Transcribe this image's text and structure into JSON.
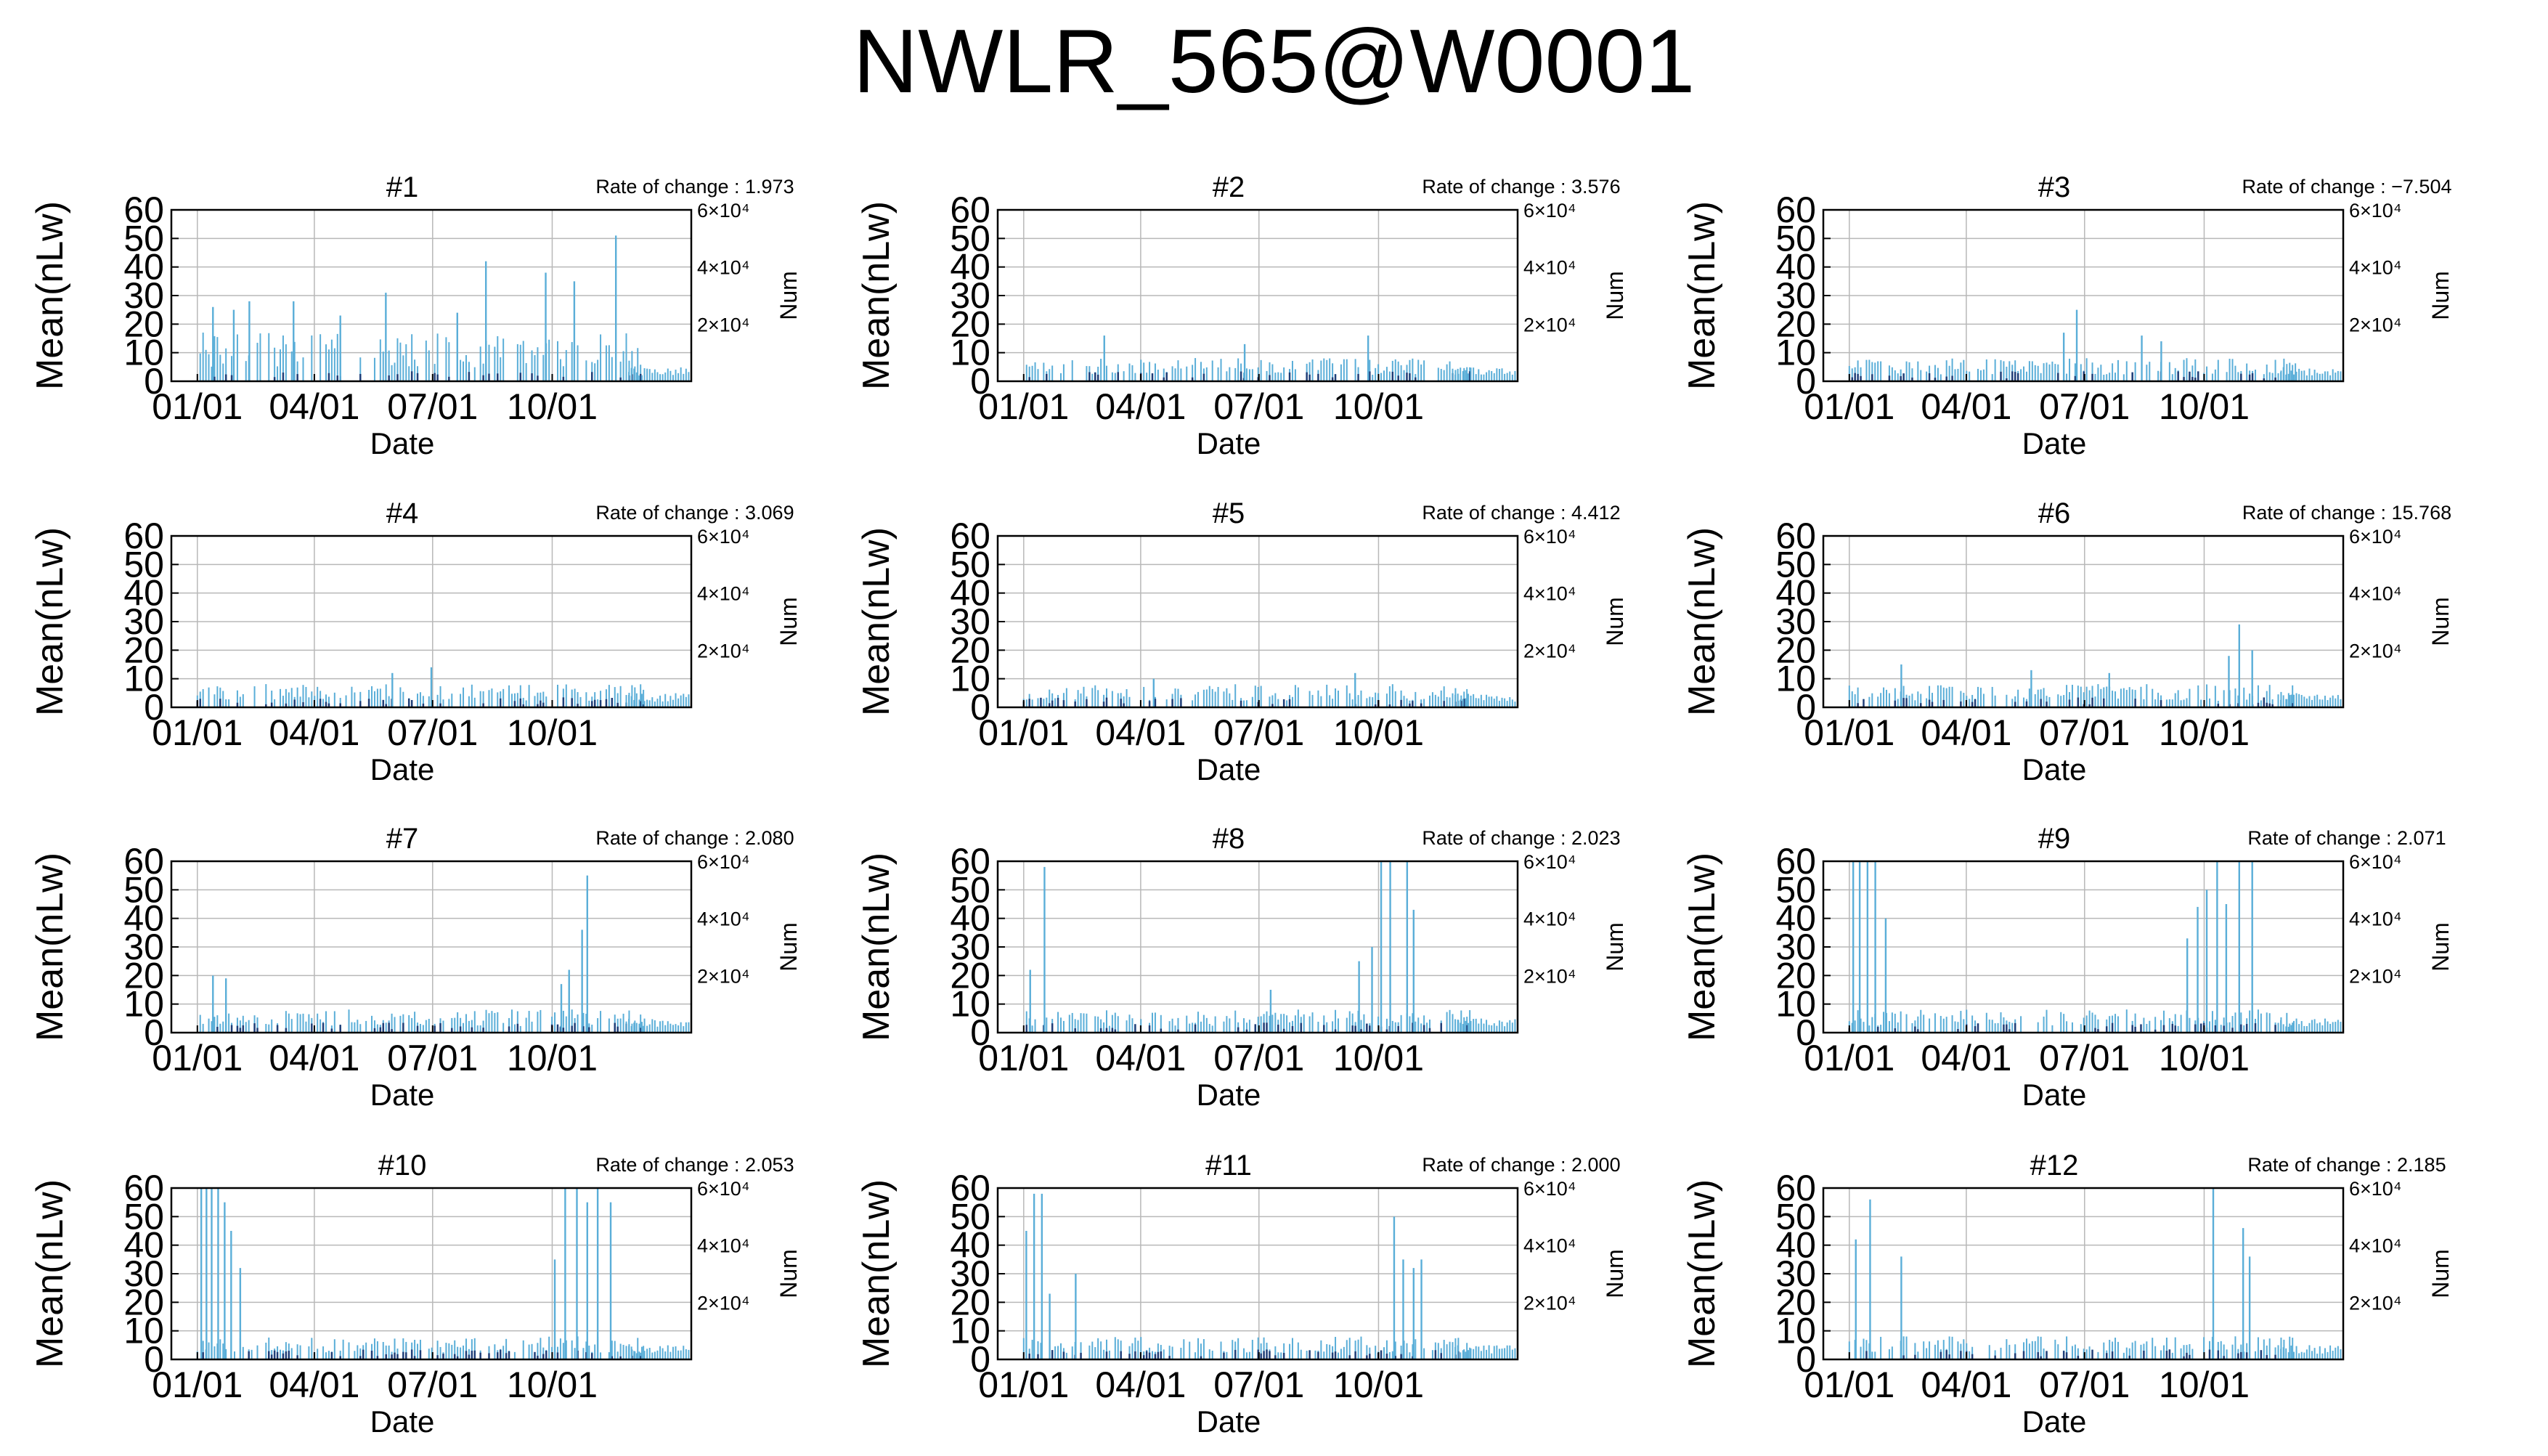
{
  "title": "NWLR_565@W0001",
  "colors": {
    "bar": "#5aaed8",
    "num_bar": "#1f3e78",
    "grid": "#b8b8b8",
    "axis": "#000000"
  },
  "chart_data": [
    {
      "type": "bar",
      "title": "#1",
      "rate_label": "Rate of change : 1.973",
      "xlabel": "Date",
      "ylabel": "Mean(nLw)",
      "y2label": "Num",
      "xticks": [
        "01/01",
        "04/01",
        "07/01",
        "10/01"
      ],
      "yticks": [
        0,
        10,
        20,
        30,
        40,
        50,
        60
      ],
      "ylim": [
        0,
        60
      ],
      "y2ticks": [
        "2×10⁴",
        "4×10⁴",
        "6×10⁴"
      ],
      "grid": true,
      "spikes": [
        {
          "day": 12,
          "value": 26
        },
        {
          "day": 28,
          "value": 25
        },
        {
          "day": 40,
          "value": 28
        },
        {
          "day": 74,
          "value": 28
        },
        {
          "day": 110,
          "value": 23
        },
        {
          "day": 145,
          "value": 31
        },
        {
          "day": 200,
          "value": 24
        },
        {
          "day": 222,
          "value": 42
        },
        {
          "day": 268,
          "value": 38
        },
        {
          "day": 290,
          "value": 35
        },
        {
          "day": 322,
          "value": 51
        }
      ]
    },
    {
      "type": "bar",
      "title": "#2",
      "rate_label": "Rate of change : 3.576",
      "xlabel": "Date",
      "ylabel": "Mean(nLw)",
      "y2label": "Num",
      "xticks": [
        "01/01",
        "04/01",
        "07/01",
        "10/01"
      ],
      "yticks": [
        0,
        10,
        20,
        30,
        40,
        50,
        60
      ],
      "ylim": [
        0,
        60
      ],
      "y2ticks": [
        "2×10⁴",
        "4×10⁴",
        "6×10⁴"
      ],
      "grid": true,
      "spikes": [
        {
          "day": 62,
          "value": 16
        },
        {
          "day": 170,
          "value": 13
        },
        {
          "day": 265,
          "value": 16
        }
      ]
    },
    {
      "type": "bar",
      "title": "#3",
      "rate_label": "Rate of change : −7.504",
      "xlabel": "Date",
      "ylabel": "Mean(nLw)",
      "y2label": "Num",
      "xticks": [
        "01/01",
        "04/01",
        "07/01",
        "10/01"
      ],
      "yticks": [
        0,
        10,
        20,
        30,
        40,
        50,
        60
      ],
      "ylim": [
        0,
        60
      ],
      "y2ticks": [
        "2×10⁴",
        "4×10⁴",
        "6×10⁴"
      ],
      "grid": true,
      "spikes": [
        {
          "day": 175,
          "value": 25
        },
        {
          "day": 165,
          "value": 17
        },
        {
          "day": 225,
          "value": 16
        },
        {
          "day": 240,
          "value": 14
        }
      ]
    },
    {
      "type": "bar",
      "title": "#4",
      "rate_label": "Rate of change : 3.069",
      "xlabel": "Date",
      "ylabel": "Mean(nLw)",
      "y2label": "Num",
      "xticks": [
        "01/01",
        "04/01",
        "07/01",
        "10/01"
      ],
      "yticks": [
        0,
        10,
        20,
        30,
        40,
        50,
        60
      ],
      "ylim": [
        0,
        60
      ],
      "y2ticks": [
        "2×10⁴",
        "4×10⁴",
        "6×10⁴"
      ],
      "grid": true,
      "spikes": [
        {
          "day": 180,
          "value": 14
        },
        {
          "day": 150,
          "value": 12
        }
      ]
    },
    {
      "type": "bar",
      "title": "#5",
      "rate_label": "Rate of change : 4.412",
      "xlabel": "Date",
      "ylabel": "Mean(nLw)",
      "y2label": "Num",
      "xticks": [
        "01/01",
        "04/01",
        "07/01",
        "10/01"
      ],
      "yticks": [
        0,
        10,
        20,
        30,
        40,
        50,
        60
      ],
      "ylim": [
        0,
        60
      ],
      "y2ticks": [
        "2×10⁴",
        "4×10⁴",
        "6×10⁴"
      ],
      "grid": true,
      "spikes": [
        {
          "day": 255,
          "value": 12
        },
        {
          "day": 100,
          "value": 10
        }
      ]
    },
    {
      "type": "bar",
      "title": "#6",
      "rate_label": "Rate of change : 15.768",
      "xlabel": "Date",
      "ylabel": "Mean(nLw)",
      "y2label": "Num",
      "xticks": [
        "01/01",
        "04/01",
        "07/01",
        "10/01"
      ],
      "yticks": [
        0,
        10,
        20,
        30,
        40,
        50,
        60
      ],
      "ylim": [
        0,
        60
      ],
      "y2ticks": [
        "2×10⁴",
        "4×10⁴",
        "6×10⁴"
      ],
      "grid": true,
      "spikes": [
        {
          "day": 300,
          "value": 29
        },
        {
          "day": 292,
          "value": 18
        },
        {
          "day": 310,
          "value": 20
        },
        {
          "day": 40,
          "value": 15
        },
        {
          "day": 140,
          "value": 13
        },
        {
          "day": 200,
          "value": 12
        }
      ]
    },
    {
      "type": "bar",
      "title": "#7",
      "rate_label": "Rate of change : 2.080",
      "xlabel": "Date",
      "ylabel": "Mean(nLw)",
      "y2label": "Num",
      "xticks": [
        "01/01",
        "04/01",
        "07/01",
        "10/01"
      ],
      "yticks": [
        0,
        10,
        20,
        30,
        40,
        50,
        60
      ],
      "ylim": [
        0,
        60
      ],
      "y2ticks": [
        "2×10⁴",
        "4×10⁴",
        "6×10⁴"
      ],
      "grid": true,
      "spikes": [
        {
          "day": 12,
          "value": 20
        },
        {
          "day": 22,
          "value": 19
        },
        {
          "day": 300,
          "value": 55
        },
        {
          "day": 296,
          "value": 36
        },
        {
          "day": 280,
          "value": 17
        },
        {
          "day": 286,
          "value": 22
        }
      ]
    },
    {
      "type": "bar",
      "title": "#8",
      "rate_label": "Rate of change : 2.023",
      "xlabel": "Date",
      "ylabel": "Mean(nLw)",
      "y2label": "Num",
      "xticks": [
        "01/01",
        "04/01",
        "07/01",
        "10/01"
      ],
      "yticks": [
        0,
        10,
        20,
        30,
        40,
        50,
        60
      ],
      "ylim": [
        0,
        60
      ],
      "y2ticks": [
        "2×10⁴",
        "4×10⁴",
        "6×10⁴"
      ],
      "grid": true,
      "spikes": [
        {
          "day": 5,
          "value": 22
        },
        {
          "day": 16,
          "value": 58
        },
        {
          "day": 275,
          "value": 60
        },
        {
          "day": 282,
          "value": 60
        },
        {
          "day": 295,
          "value": 60
        },
        {
          "day": 300,
          "value": 43
        },
        {
          "day": 258,
          "value": 25
        },
        {
          "day": 268,
          "value": 30
        },
        {
          "day": 190,
          "value": 15
        }
      ]
    },
    {
      "type": "bar",
      "title": "#9",
      "rate_label": "Rate of change : 2.071",
      "xlabel": "Date",
      "ylabel": "Mean(nLw)",
      "y2label": "Num",
      "xticks": [
        "01/01",
        "04/01",
        "07/01",
        "10/01"
      ],
      "yticks": [
        0,
        10,
        20,
        30,
        40,
        50,
        60
      ],
      "ylim": [
        0,
        60
      ],
      "y2ticks": [
        "2×10⁴",
        "4×10⁴",
        "6×10⁴"
      ],
      "grid": true,
      "spikes": [
        {
          "day": 3,
          "value": 60
        },
        {
          "day": 8,
          "value": 60
        },
        {
          "day": 14,
          "value": 60
        },
        {
          "day": 20,
          "value": 60
        },
        {
          "day": 28,
          "value": 40
        },
        {
          "day": 260,
          "value": 33
        },
        {
          "day": 268,
          "value": 44
        },
        {
          "day": 275,
          "value": 50
        },
        {
          "day": 283,
          "value": 60
        },
        {
          "day": 290,
          "value": 45
        },
        {
          "day": 300,
          "value": 60
        },
        {
          "day": 310,
          "value": 60
        }
      ]
    },
    {
      "type": "bar",
      "title": "#10",
      "rate_label": "Rate of change : 2.053",
      "xlabel": "Date",
      "ylabel": "Mean(nLw)",
      "y2label": "Num",
      "xticks": [
        "01/01",
        "04/01",
        "07/01",
        "10/01"
      ],
      "yticks": [
        0,
        10,
        20,
        30,
        40,
        50,
        60
      ],
      "ylim": [
        0,
        60
      ],
      "y2ticks": [
        "2×10⁴",
        "4×10⁴",
        "6×10⁴"
      ],
      "grid": true,
      "spikes": [
        {
          "day": 3,
          "value": 60
        },
        {
          "day": 7,
          "value": 60
        },
        {
          "day": 11,
          "value": 60
        },
        {
          "day": 16,
          "value": 60
        },
        {
          "day": 21,
          "value": 55
        },
        {
          "day": 26,
          "value": 45
        },
        {
          "day": 33,
          "value": 32
        },
        {
          "day": 275,
          "value": 35
        },
        {
          "day": 283,
          "value": 60
        },
        {
          "day": 292,
          "value": 60
        },
        {
          "day": 300,
          "value": 55
        },
        {
          "day": 308,
          "value": 60
        },
        {
          "day": 318,
          "value": 55
        }
      ]
    },
    {
      "type": "bar",
      "title": "#11",
      "rate_label": "Rate of change : 2.000",
      "xlabel": "Date",
      "ylabel": "Mean(nLw)",
      "y2label": "Num",
      "xticks": [
        "01/01",
        "04/01",
        "07/01",
        "10/01"
      ],
      "yticks": [
        0,
        10,
        20,
        30,
        40,
        50,
        60
      ],
      "ylim": [
        0,
        60
      ],
      "y2ticks": [
        "2×10⁴",
        "4×10⁴",
        "6×10⁴"
      ],
      "grid": true,
      "spikes": [
        {
          "day": 2,
          "value": 45
        },
        {
          "day": 8,
          "value": 58
        },
        {
          "day": 14,
          "value": 58
        },
        {
          "day": 20,
          "value": 23
        },
        {
          "day": 40,
          "value": 30
        },
        {
          "day": 285,
          "value": 50
        },
        {
          "day": 292,
          "value": 35
        },
        {
          "day": 300,
          "value": 32
        },
        {
          "day": 306,
          "value": 35
        }
      ]
    },
    {
      "type": "bar",
      "title": "#12",
      "rate_label": "Rate of change : 2.185",
      "xlabel": "Date",
      "ylabel": "Mean(nLw)",
      "y2label": "Num",
      "xticks": [
        "01/01",
        "04/01",
        "07/01",
        "10/01"
      ],
      "yticks": [
        0,
        10,
        20,
        30,
        40,
        50,
        60
      ],
      "ylim": [
        0,
        60
      ],
      "y2ticks": [
        "2×10⁴",
        "4×10⁴",
        "6×10⁴"
      ],
      "grid": true,
      "spikes": [
        {
          "day": 5,
          "value": 42
        },
        {
          "day": 16,
          "value": 56
        },
        {
          "day": 40,
          "value": 36
        },
        {
          "day": 280,
          "value": 60
        },
        {
          "day": 303,
          "value": 46
        },
        {
          "day": 308,
          "value": 36
        }
      ]
    }
  ]
}
